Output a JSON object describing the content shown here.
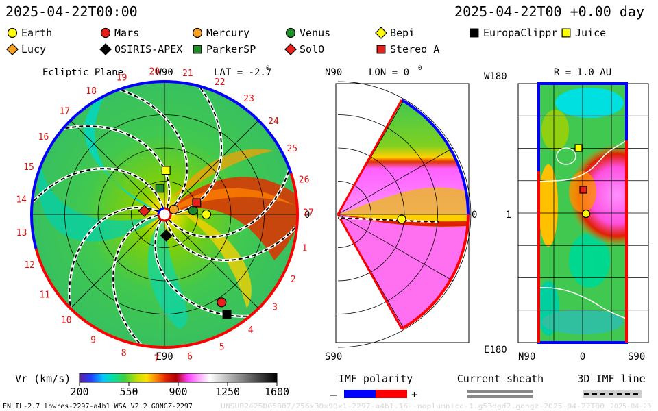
{
  "header": {
    "title_left": "2025-04-22T00:00",
    "title_right": "2025-04-22T00 +0.00 day"
  },
  "legend": [
    {
      "name": "Earth",
      "marker": "circle",
      "color": "#ffff00"
    },
    {
      "name": "Mars",
      "marker": "circle",
      "color": "#e8201c"
    },
    {
      "name": "Mercury",
      "marker": "circle",
      "color": "#f5a020"
    },
    {
      "name": "Venus",
      "marker": "circle",
      "color": "#1e8c28"
    },
    {
      "name": "Bepi",
      "marker": "diamond",
      "color": "#ffff00"
    },
    {
      "name": "EuropaClippr",
      "marker": "square",
      "color": "#000000"
    },
    {
      "name": "Juice",
      "marker": "square",
      "color": "#ffff00"
    },
    {
      "name": "Lucy",
      "marker": "diamond",
      "color": "#f5a020"
    },
    {
      "name": "OSIRIS-APEX",
      "marker": "diamond",
      "color": "#000000"
    },
    {
      "name": "ParkerSP",
      "marker": "square",
      "color": "#1e8c28"
    },
    {
      "name": "SolO",
      "marker": "diamond",
      "color": "#e8201c"
    },
    {
      "name": "Stereo_A",
      "marker": "square",
      "color": "#e8201c"
    }
  ],
  "panels": {
    "ecliptic": {
      "title": "Ecliptic Plane",
      "lat_label": "LAT = -2.7",
      "deg": "0",
      "top_label": "W90",
      "bottom_label": "E90",
      "right_label": "0",
      "carrington_numbers": [
        "1",
        "2",
        "3",
        "4",
        "5",
        "6",
        "7",
        "8",
        "9",
        "10",
        "11",
        "12",
        "13",
        "14",
        "15",
        "16",
        "17",
        "18",
        "19",
        "20",
        "21",
        "22",
        "23",
        "24",
        "25",
        "26",
        "27"
      ]
    },
    "meridional": {
      "top_label": "N90",
      "lon_label": "LON = 0",
      "deg": "0",
      "right_label": "0",
      "bottom_label": "S90"
    },
    "sphere": {
      "r_label": "R = 1.0 AU",
      "top_left_label": "W180",
      "mid_left_label": "1",
      "bottom_left_label": "E180",
      "x_left": "N90",
      "x_mid": "0",
      "x_right": "S90"
    }
  },
  "colorbar": {
    "label": "Vr (km/s)",
    "ticks": [
      "200",
      "550",
      "900",
      "1250",
      "1600"
    ],
    "range": [
      200,
      1600
    ]
  },
  "imf_legend": {
    "title": "IMF polarity",
    "minus": "–",
    "plus": "+",
    "negative_color": "#0000ff",
    "positive_color": "#ff0000"
  },
  "current_sheath": {
    "title": "Current sheath"
  },
  "imf_line": {
    "title": "3D IMF line"
  },
  "footer": {
    "model": "ENLIL-2.7 lowres-2297-a4b1 WSA_V2.2 GONGZ-2297",
    "run_id": "UNSUB2425D05B07/256x30x90x1-2297-a4b1.16--noplumnicd-1.g53dgd2.gongz-2025-04-22T00",
    "run_date": "2025-04-23"
  },
  "chart_data": {
    "type": "heatmap",
    "title": "",
    "quantity": "Vr (km/s)",
    "value_range": [
      200,
      1600
    ],
    "time": "2025-04-22T00:00",
    "lead": "+0.00 day",
    "panels": [
      "Ecliptic Plane (LAT = -2.7)",
      "Meridional (LON = 0)",
      "Sphere R = 1.0 AU"
    ],
    "bodies_ecliptic": [
      {
        "name": "Earth",
        "r_au": 0.55,
        "angle_deg": 0
      },
      {
        "name": "Mercury",
        "r_au": 0.14,
        "angle_deg": 28
      },
      {
        "name": "Venus",
        "r_au": 0.38,
        "angle_deg": 8
      },
      {
        "name": "Mars",
        "r_au": 1.38,
        "angle_deg": -57
      },
      {
        "name": "EuropaClippr",
        "r_au": 1.55,
        "angle_deg": -58
      },
      {
        "name": "Juice",
        "r_au": 0.58,
        "angle_deg": 88
      },
      {
        "name": "ParkerSP",
        "r_au": 0.35,
        "angle_deg": 100
      },
      {
        "name": "SolO",
        "r_au": 0.27,
        "angle_deg": 170
      },
      {
        "name": "Stereo_A",
        "r_au": 0.45,
        "angle_deg": 20
      },
      {
        "name": "OSIRIS-APEX",
        "r_au": 0.28,
        "angle_deg": -85
      }
    ]
  }
}
